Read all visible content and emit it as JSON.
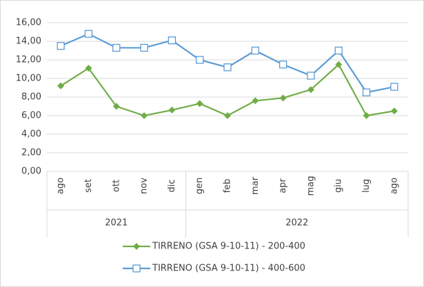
{
  "chart_data": {
    "type": "line",
    "groups": [
      {
        "label": "2021",
        "categories": [
          "ago",
          "set",
          "ott",
          "nov",
          "dic"
        ]
      },
      {
        "label": "2022",
        "categories": [
          "gen",
          "feb",
          "mar",
          "apr",
          "mag",
          "giu",
          "lug",
          "ago"
        ]
      }
    ],
    "series": [
      {
        "name": "TIRRENO (GSA 9-10-11) - 200-400",
        "color": "#70ad47",
        "marker": "diamond",
        "values": [
          9.2,
          11.1,
          7.0,
          6.0,
          6.6,
          7.3,
          6.0,
          7.6,
          7.9,
          8.8,
          11.5,
          6.0,
          6.5
        ]
      },
      {
        "name": "TIRRENO (GSA 9-10-11) - 400-600",
        "color": "#5b9bd5",
        "marker": "square",
        "values": [
          13.5,
          14.8,
          13.3,
          13.3,
          14.1,
          12.0,
          11.2,
          13.0,
          11.5,
          10.3,
          13.0,
          8.5,
          9.1
        ]
      }
    ],
    "ylim": [
      0,
      16
    ],
    "yticks": [
      {
        "value": 0,
        "label": "0,00"
      },
      {
        "value": 2,
        "label": "2,00"
      },
      {
        "value": 4,
        "label": "4,00"
      },
      {
        "value": 6,
        "label": "6,00"
      },
      {
        "value": 8,
        "label": "8,00"
      },
      {
        "value": 10,
        "label": "10,00"
      },
      {
        "value": 12,
        "label": "12,00"
      },
      {
        "value": 14,
        "label": "14,00"
      },
      {
        "value": 16,
        "label": "16,00"
      }
    ],
    "grid": true,
    "legend": "bottom"
  }
}
